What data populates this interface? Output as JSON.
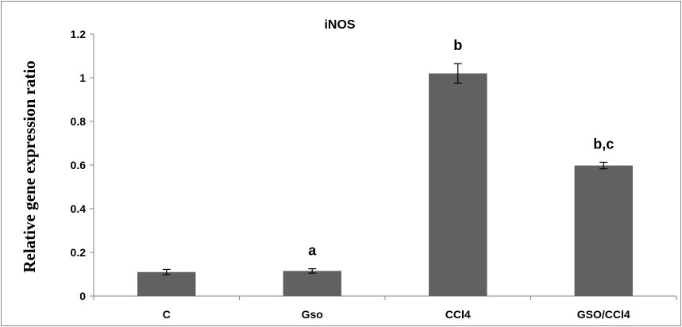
{
  "chart_data": {
    "type": "bar",
    "title": "iNOS",
    "xlabel": "",
    "ylabel": "Relative gene expression ratio",
    "categories": [
      "C",
      "Gso",
      "CCl4",
      "GSO/CCl4"
    ],
    "values": [
      0.11,
      0.115,
      1.02,
      0.598
    ],
    "errors": [
      0.012,
      0.01,
      0.045,
      0.015
    ],
    "significance": [
      "",
      "a",
      "b",
      "b,c"
    ],
    "ylim": [
      0,
      1.2
    ],
    "yticks": [
      0,
      0.2,
      0.4,
      0.6,
      0.8,
      1,
      1.2
    ],
    "ytick_labels": [
      "0",
      "0.2",
      "0.4",
      "0.6",
      "0.8",
      "1",
      "1.2"
    ],
    "bar_color": "#616161",
    "grid": false,
    "legend": "none"
  }
}
